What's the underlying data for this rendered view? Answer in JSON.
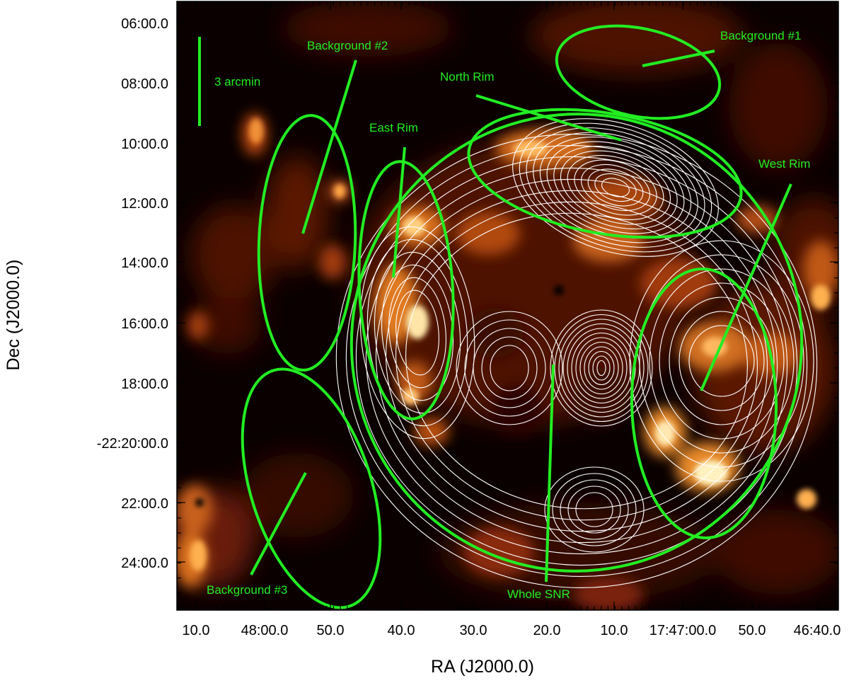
{
  "axes": {
    "xlabel": "RA (J2000.0)",
    "ylabel": "Dec (J2000.0)",
    "x_ticks": [
      "10.0",
      "48:00.0",
      "50.0",
      "40.0",
      "30.0",
      "20.0",
      "10.0",
      "17:47:00.0",
      "50.0",
      "46:40.0"
    ],
    "y_ticks": [
      "06:00.0",
      "08:00.0",
      "10:00.0",
      "12:00.0",
      "14:00.0",
      "16:00.0",
      "18:00.0",
      "-22:20:00.0",
      "22:00.0",
      "24:00.0"
    ]
  },
  "scale_bar": {
    "label": "3 arcmin"
  },
  "regions": {
    "bg1": "Background #1",
    "bg2": "Background #2",
    "bg3": "Background #3",
    "north": "North Rim",
    "east": "East Rim",
    "west": "West Rim",
    "whole": "Whole SNR"
  },
  "colors": {
    "region": "#22ee22",
    "contour": "#ffffff",
    "image_dark": "#0a0000",
    "image_bright": "#fff2c0"
  }
}
